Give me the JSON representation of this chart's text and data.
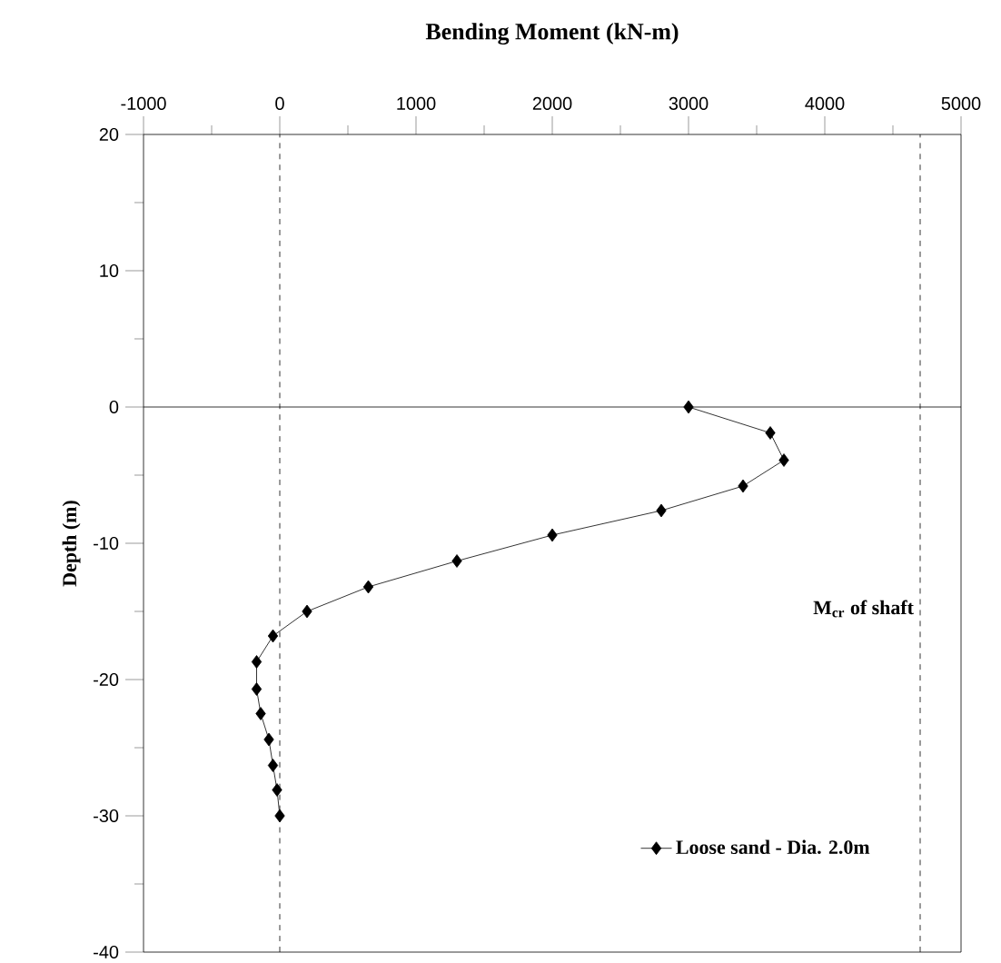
{
  "chart_data": {
    "type": "line",
    "title": "Bending Moment (kN-m)",
    "ylabel": "Depth (m)",
    "xlim": [
      -1000,
      5000
    ],
    "ylim": [
      -40,
      20
    ],
    "xticks": [
      -1000,
      {
        "value": -500,
        "label": null
      },
      0,
      {
        "value": 500,
        "label": null
      },
      1000,
      {
        "value": 1500,
        "label": null
      },
      2000,
      {
        "value": 2500,
        "label": null
      },
      3000,
      {
        "value": 3500,
        "label": null
      },
      4000,
      {
        "value": 4500,
        "label": null
      },
      5000
    ],
    "yticks": [
      -40,
      {
        "value": -35,
        "label": null
      },
      -30,
      {
        "value": -25,
        "label": null
      },
      -20,
      {
        "value": -15,
        "label": null
      },
      -10,
      {
        "value": -5,
        "label": null
      },
      0,
      {
        "value": 5,
        "label": null
      },
      10,
      {
        "value": 15,
        "label": null
      },
      20
    ],
    "series": [
      {
        "name": "Loose sand - Dia. 2.0m",
        "color": "#000000",
        "x": [
          3000,
          3600,
          3700,
          3400,
          2800,
          2000,
          1300,
          650,
          200,
          -50,
          -170,
          -170,
          -140,
          -80,
          -50,
          -20,
          0
        ],
        "values": [
          0,
          -1.9,
          -3.9,
          -5.8,
          -7.6,
          -9.4,
          -11.3,
          -13.2,
          -15.0,
          -16.8,
          -18.7,
          -20.7,
          -22.5,
          -24.4,
          -26.3,
          -28.1,
          -30
        ]
      }
    ],
    "marker": "diamond",
    "line_style": "solid",
    "legend": "bottom right",
    "ref_lines": [
      {
        "axis": "y",
        "value": 0,
        "line_style": "solid"
      },
      {
        "axis": "x",
        "value": 0,
        "line_style": "dashed"
      },
      {
        "axis": "x",
        "value": 4700,
        "line_style": "dashed",
        "label": "M$_{cr}$ of shaft"
      }
    ]
  }
}
